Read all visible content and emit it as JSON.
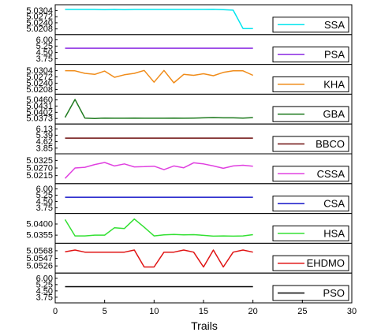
{
  "chart_data": {
    "type": "line",
    "xlabel": "Trails",
    "xlim": [
      0,
      30
    ],
    "xticks": [
      0,
      5,
      10,
      15,
      20,
      25,
      30
    ],
    "panels": [
      {
        "name": "SSA",
        "color": "#00e5ee",
        "yticks": [
          "5.0304",
          "5.0272",
          "5.0240",
          "5.0208"
        ],
        "ylim": [
          5.0195,
          5.0318
        ],
        "x": [
          1,
          2,
          3,
          4,
          5,
          6,
          7,
          8,
          9,
          10,
          11,
          12,
          13,
          14,
          15,
          16,
          17,
          18,
          19,
          20
        ],
        "y": [
          5.031,
          5.031,
          5.031,
          5.031,
          5.0309,
          5.031,
          5.0309,
          5.031,
          5.031,
          5.031,
          5.031,
          5.031,
          5.031,
          5.031,
          5.031,
          5.0311,
          5.0309,
          5.0306,
          5.021,
          5.021
        ]
      },
      {
        "name": "PSA",
        "color": "#8b2be2",
        "yticks": [
          "6.00",
          "5.25",
          "4.50",
          "3.75"
        ],
        "ylim": [
          3.45,
          6.25
        ],
        "x": [
          1,
          20
        ],
        "y": [
          5.0,
          5.0
        ]
      },
      {
        "name": "KHA",
        "color": "#f08c1a",
        "yticks": [
          "5.0304",
          "5.0272",
          "5.0240",
          "5.0208"
        ],
        "ylim": [
          5.02,
          5.032
        ],
        "x": [
          1,
          2,
          3,
          4,
          5,
          6,
          7,
          8,
          9,
          10,
          11,
          12,
          13,
          14,
          15,
          16,
          17,
          18,
          19,
          20
        ],
        "y": [
          5.0304,
          5.0303,
          5.029,
          5.0285,
          5.0302,
          5.027,
          5.0283,
          5.029,
          5.0305,
          5.0245,
          5.0305,
          5.0242,
          5.0285,
          5.028,
          5.0288,
          5.0278,
          5.0295,
          5.0303,
          5.0303,
          5.028
        ]
      },
      {
        "name": "GBA",
        "color": "#1f7a1f",
        "yticks": [
          "5.0460",
          "5.0431",
          "5.0402",
          "5.0373"
        ],
        "ylim": [
          5.0362,
          5.0472
        ],
        "x": [
          1,
          2,
          3,
          4,
          5,
          6,
          7,
          8,
          9,
          10,
          11,
          12,
          13,
          14,
          15,
          16,
          17,
          18,
          19,
          20
        ],
        "y": [
          5.0378,
          5.0462,
          5.0375,
          5.0373,
          5.0375,
          5.0374,
          5.0374,
          5.0375,
          5.0374,
          5.0374,
          5.0374,
          5.0375,
          5.0374,
          5.0375,
          5.0376,
          5.0377,
          5.0376,
          5.0376,
          5.0375,
          5.0377
        ]
      },
      {
        "name": "BBCO",
        "color": "#6e0f0f",
        "yticks": [
          "6.13",
          "5.39",
          "4.62",
          "3.85"
        ],
        "ylim": [
          3.55,
          6.35
        ],
        "x": [
          1,
          20
        ],
        "y": [
          5.04,
          5.04
        ]
      },
      {
        "name": "CSSA",
        "color": "#e040e0",
        "yticks": [
          "5.0325",
          "5.0270",
          "5.0215"
        ],
        "ylim": [
          5.018,
          5.035
        ],
        "x": [
          1,
          2,
          3,
          4,
          5,
          6,
          7,
          8,
          9,
          10,
          11,
          12,
          13,
          14,
          15,
          16,
          17,
          18,
          19,
          20
        ],
        "y": [
          5.0195,
          5.027,
          5.0275,
          5.0295,
          5.031,
          5.0285,
          5.03,
          5.0278,
          5.028,
          5.0283,
          5.0258,
          5.0285,
          5.0272,
          5.0308,
          5.03,
          5.0285,
          5.0268,
          5.0285,
          5.029,
          5.0283
        ]
      },
      {
        "name": "CSA",
        "color": "#1414c8",
        "yticks": [
          "6.00",
          "5.25",
          "4.50",
          "3.75"
        ],
        "ylim": [
          3.45,
          6.25
        ],
        "x": [
          1,
          20
        ],
        "y": [
          5.0,
          5.0
        ]
      },
      {
        "name": "HSA",
        "color": "#33e033",
        "yticks": [
          "5.0400",
          "5.0355"
        ],
        "ylim": [
          5.0335,
          5.043
        ],
        "x": [
          1,
          2,
          3,
          4,
          5,
          6,
          7,
          8,
          9,
          10,
          11,
          12,
          13,
          14,
          15,
          16,
          17,
          18,
          19,
          20
        ],
        "y": [
          5.0418,
          5.0352,
          5.0352,
          5.0355,
          5.0355,
          5.0385,
          5.0382,
          5.042,
          5.0387,
          5.0352,
          5.0356,
          5.0358,
          5.0356,
          5.0357,
          5.0354,
          5.0351,
          5.0352,
          5.0351,
          5.0352,
          5.0357
        ]
      },
      {
        "name": "EHDMO",
        "color": "#e01414",
        "yticks": [
          "5.0568",
          "5.0547",
          "5.0526"
        ],
        "ylim": [
          5.0515,
          5.058
        ],
        "x": [
          1,
          2,
          3,
          4,
          5,
          6,
          7,
          8,
          9,
          10,
          11,
          12,
          13,
          14,
          15,
          16,
          17,
          18,
          19,
          20
        ],
        "y": [
          5.0565,
          5.057,
          5.0564,
          5.0564,
          5.0564,
          5.0564,
          5.0564,
          5.057,
          5.0523,
          5.0523,
          5.0564,
          5.0564,
          5.057,
          5.0564,
          5.0523,
          5.057,
          5.0523,
          5.0564,
          5.057,
          5.0564
        ]
      },
      {
        "name": "PSO",
        "color": "#000000",
        "yticks": [
          "6.00",
          "5.25",
          "4.50",
          "3.75"
        ],
        "ylim": [
          3.45,
          6.25
        ],
        "x": [
          1,
          20
        ],
        "y": [
          5.0,
          5.0
        ]
      }
    ]
  }
}
